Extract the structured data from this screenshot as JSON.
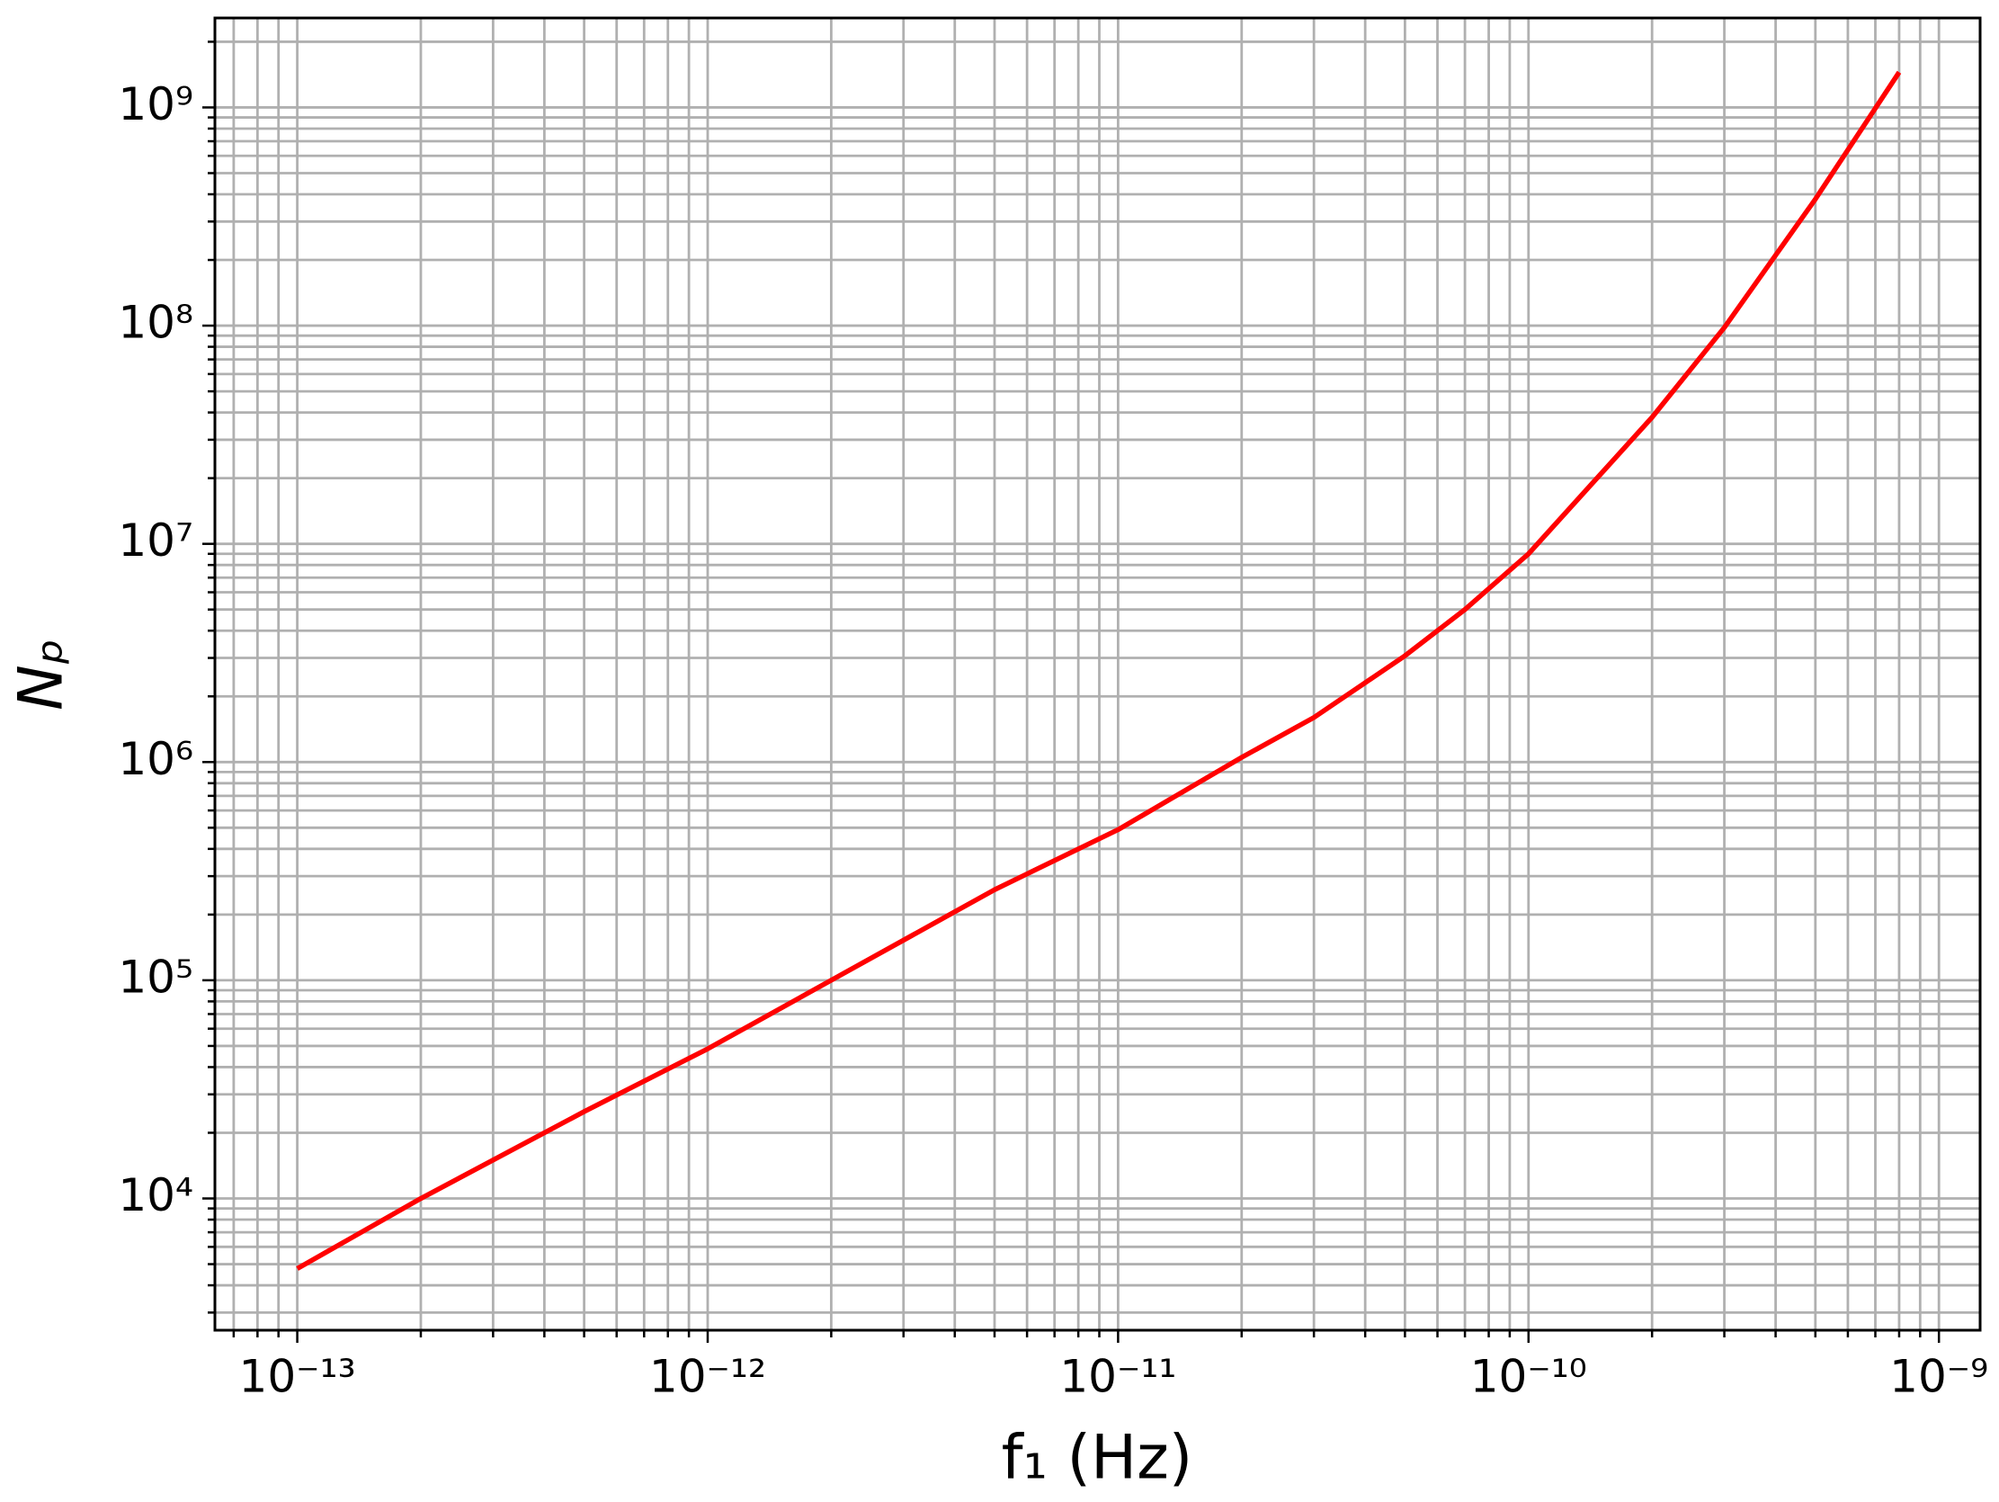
{
  "chart_data": {
    "type": "line",
    "xlabel": "f₁ (Hz)",
    "ylabel": "Nₚ",
    "x": [
      1e-13,
      2e-13,
      5e-13,
      1e-12,
      2e-12,
      5e-12,
      1e-11,
      2e-11,
      3e-11,
      5e-11,
      7e-11,
      1e-10,
      2e-10,
      3e-10,
      5e-10,
      8e-10
    ],
    "series": [
      {
        "color": "#ff0000",
        "values": [
          4770,
          10000,
          25000,
          48500,
          100000,
          260000,
          490000,
          1050000,
          1600000,
          3070000,
          5000000,
          9000000,
          38000000,
          98000000,
          380000000,
          1450000000
        ]
      }
    ],
    "xscale": "log",
    "yscale": "log",
    "xlim": [
      6.3e-14,
      1.26e-09
    ],
    "ylim": [
      2490,
      2570000000
    ],
    "xticks": [
      {
        "value": 1e-13,
        "label": "10⁻¹³"
      },
      {
        "value": 1e-12,
        "label": "10⁻¹²"
      },
      {
        "value": 1e-11,
        "label": "10⁻¹¹"
      },
      {
        "value": 1e-10,
        "label": "10⁻¹⁰"
      },
      {
        "value": 1e-09,
        "label": "10⁻⁹"
      }
    ],
    "yticks": [
      {
        "value": 10000,
        "label": "10⁴"
      },
      {
        "value": 100000,
        "label": "10⁵"
      },
      {
        "value": 1000000,
        "label": "10⁶"
      },
      {
        "value": 10000000,
        "label": "10⁷"
      },
      {
        "value": 100000000,
        "label": "10⁸"
      },
      {
        "value": 1000000000,
        "label": "10⁹"
      }
    ],
    "grid": true,
    "minor_grid": true
  }
}
